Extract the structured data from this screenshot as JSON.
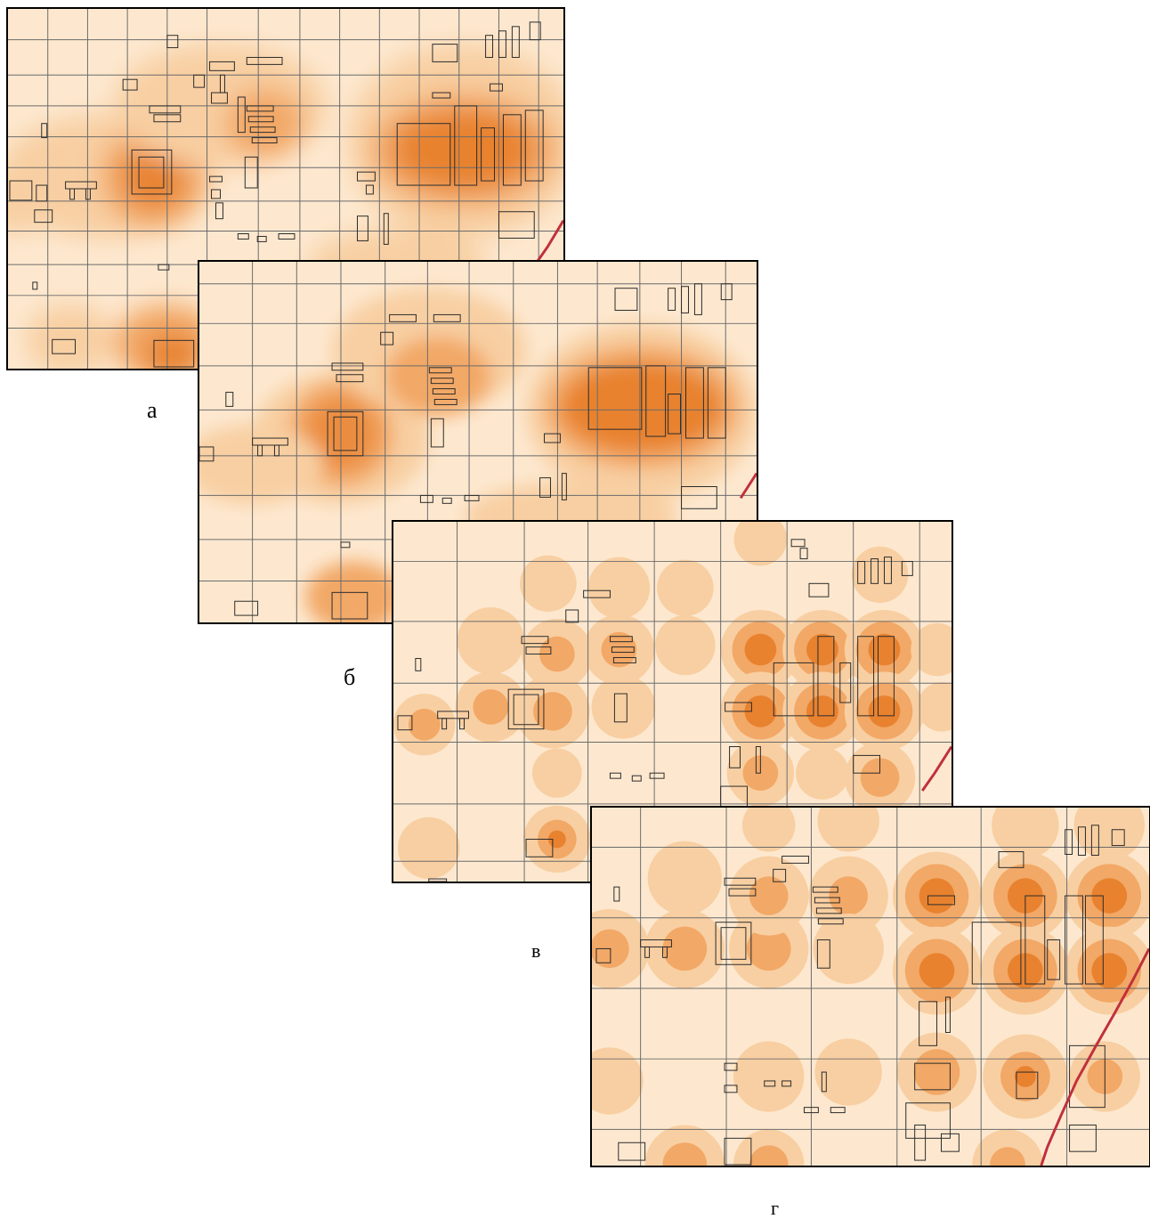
{
  "figure": {
    "panels": [
      {
        "id": "a",
        "caption": "а"
      },
      {
        "id": "b",
        "caption": "б"
      },
      {
        "id": "c",
        "caption": "в"
      },
      {
        "id": "d",
        "caption": "г"
      }
    ]
  },
  "colors": {
    "background": "#fde8cf",
    "heat_light": "#f8cfa2",
    "heat_mid": "#f2a866",
    "heat_dark": "#e8822f",
    "grid": "#6b6b6b",
    "building": "#2b2b2b",
    "railway": "#c0303c"
  },
  "legend": []
}
